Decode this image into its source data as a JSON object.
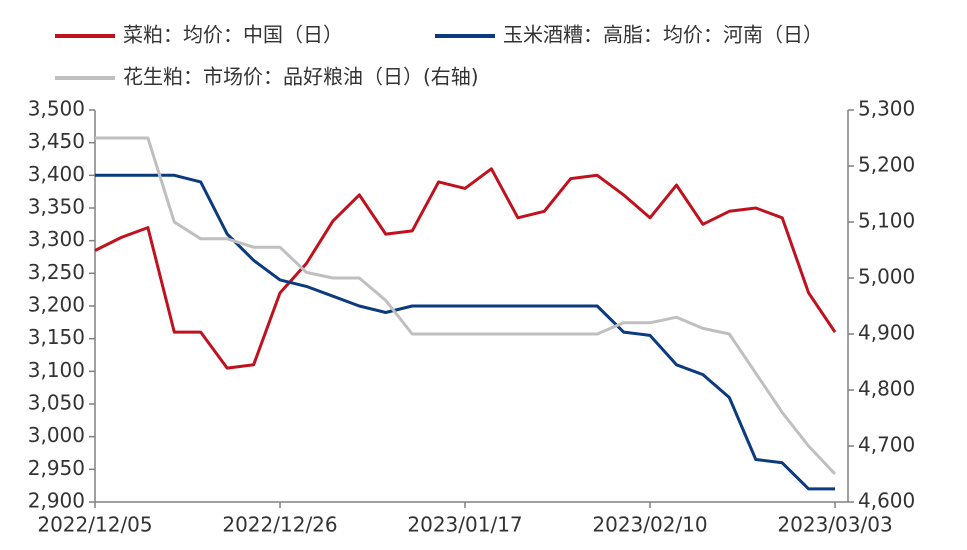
{
  "chart_data": {
    "type": "line",
    "categories": [
      "2022/12/05",
      null,
      null,
      null,
      null,
      null,
      null,
      "2022/12/26",
      null,
      null,
      null,
      null,
      null,
      null,
      "2023/01/17",
      null,
      null,
      null,
      null,
      null,
      null,
      "2023/02/10",
      null,
      null,
      null,
      null,
      null,
      null,
      "2023/03/03"
    ],
    "series": [
      {
        "name": "菜粕：均价：中国（日）",
        "color": "#c0121e",
        "axis": "y",
        "values": [
          3285,
          3305,
          3320,
          3160,
          3160,
          3105,
          3110,
          3220,
          3265,
          3330,
          3370,
          3310,
          3315,
          3390,
          3380,
          3410,
          3335,
          3345,
          3395,
          3400,
          3370,
          3335,
          3385,
          3325,
          3345,
          3350,
          3335,
          3220,
          3160
        ]
      },
      {
        "name": "玉米酒糟：高脂：均价：河南（日）",
        "color": "#0b3a7e",
        "axis": "y",
        "values": [
          3400,
          3400,
          3400,
          3400,
          3390,
          3310,
          3270,
          3240,
          3230,
          3215,
          3200,
          3190,
          3200,
          3200,
          3200,
          3200,
          3200,
          3200,
          3200,
          3200,
          3160,
          3155,
          3110,
          3095,
          3060,
          2965,
          2960,
          2920,
          2920
        ]
      },
      {
        "name": "花生粕：市场价：品好粮油（日）(右轴)",
        "color": "#bfbfbf",
        "axis": "y2",
        "values": [
          5250,
          5250,
          5250,
          5100,
          5070,
          5070,
          5055,
          5055,
          5010,
          5000,
          5000,
          4960,
          4900,
          4900,
          4900,
          4900,
          4900,
          4900,
          4900,
          4900,
          4920,
          4920,
          4930,
          4910,
          4900,
          4830,
          4760,
          4700,
          4650
        ]
      }
    ],
    "ylim": [
      2900,
      3500
    ],
    "yticks": [
      {
        "value": 2900,
        "label": "2,900"
      },
      {
        "value": 2950,
        "label": "2,950"
      },
      {
        "value": 3000,
        "label": "3,000"
      },
      {
        "value": 3050,
        "label": "3,050"
      },
      {
        "value": 3100,
        "label": "3,100"
      },
      {
        "value": 3150,
        "label": "3,150"
      },
      {
        "value": 3200,
        "label": "3,200"
      },
      {
        "value": 3250,
        "label": "3,250"
      },
      {
        "value": 3300,
        "label": "3,300"
      },
      {
        "value": 3350,
        "label": "3,350"
      },
      {
        "value": 3400,
        "label": "3,400"
      },
      {
        "value": 3450,
        "label": "3,450"
      },
      {
        "value": 3500,
        "label": "3,500"
      }
    ],
    "y2lim": [
      4600,
      5300
    ],
    "y2ticks": [
      {
        "value": 4600,
        "label": "4,600"
      },
      {
        "value": 4700,
        "label": "4,700"
      },
      {
        "value": 4800,
        "label": "4,800"
      },
      {
        "value": 4900,
        "label": "4,900"
      },
      {
        "value": 5000,
        "label": "5,000"
      },
      {
        "value": 5100,
        "label": "5,100"
      },
      {
        "value": 5200,
        "label": "5,200"
      },
      {
        "value": 5300,
        "label": "5,300"
      }
    ]
  }
}
